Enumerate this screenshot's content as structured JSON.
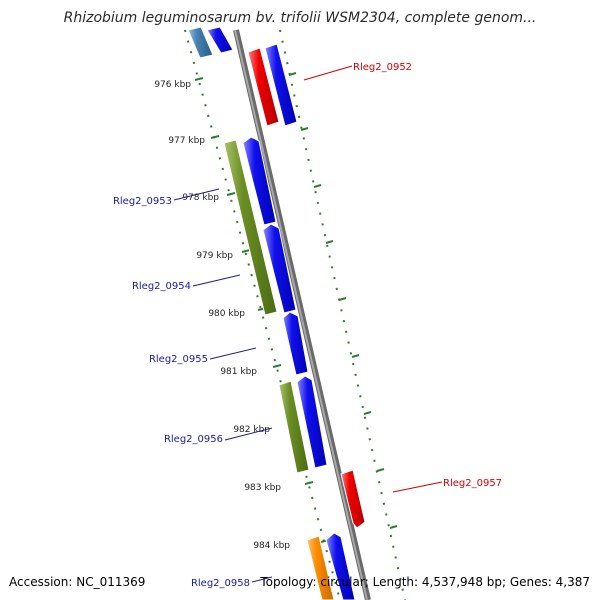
{
  "title": "Rhizobium leguminosarum bv. trifolii WSM2304, complete genom...",
  "footer": {
    "accession": "Accession: NC_011369",
    "summary": "Topology: circular; Length: 4,537,948 bp; Genes: 4,387"
  },
  "kbp_labels": [
    "976 kbp",
    "977 kbp",
    "978 kbp",
    "979 kbp",
    "980 kbp",
    "981 kbp",
    "982 kbp",
    "983 kbp",
    "984 kbp"
  ],
  "gene_labels": [
    {
      "text": "Rleg2_0952",
      "color": "#d40000"
    },
    {
      "text": "Rleg2_0953",
      "color": "#1a1aa0"
    },
    {
      "text": "Rleg2_0954",
      "color": "#1a1aa0"
    },
    {
      "text": "Rleg2_0955",
      "color": "#1a1aa0"
    },
    {
      "text": "Rleg2_0956",
      "color": "#1a1aa0"
    },
    {
      "text": "Rleg2_0957",
      "color": "#d40000"
    },
    {
      "text": "Rleg2_0958",
      "color": "#1a1aa0"
    }
  ],
  "colors": {
    "backbone": "#8a8a8a",
    "cds_blue": "#0000ee",
    "cds_red": "#ee0000",
    "cds_green": "#6b8e23",
    "cds_orange": "#ff8c00",
    "cds_steel": "#4682b4",
    "tick_green": "#2e7d32"
  }
}
